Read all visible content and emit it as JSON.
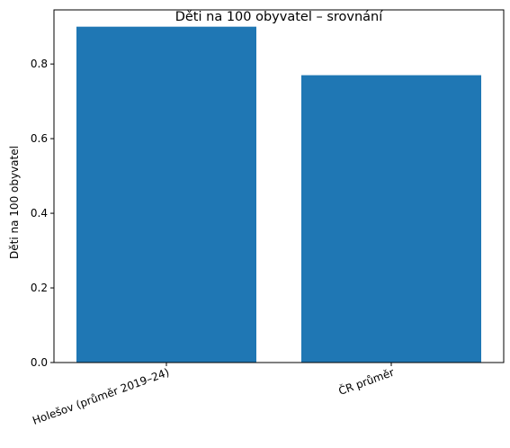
{
  "chart_data": {
    "type": "bar",
    "title": "Děti na 100 obyvatel – srovnání",
    "xlabel": "",
    "ylabel": "Děti na 100 obyvatel",
    "categories": [
      "Holešov (průměr 2019–24)",
      "ČR průměr"
    ],
    "values": [
      0.9,
      0.77
    ],
    "ylim": [
      0,
      0.945
    ],
    "yticks": [
      0.0,
      0.2,
      0.4,
      0.6,
      0.8
    ],
    "ytick_labels": [
      "0.0",
      "0.2",
      "0.4",
      "0.6",
      "0.8"
    ],
    "bar_color": "#1f77b4",
    "grid": false,
    "legend": "none"
  }
}
